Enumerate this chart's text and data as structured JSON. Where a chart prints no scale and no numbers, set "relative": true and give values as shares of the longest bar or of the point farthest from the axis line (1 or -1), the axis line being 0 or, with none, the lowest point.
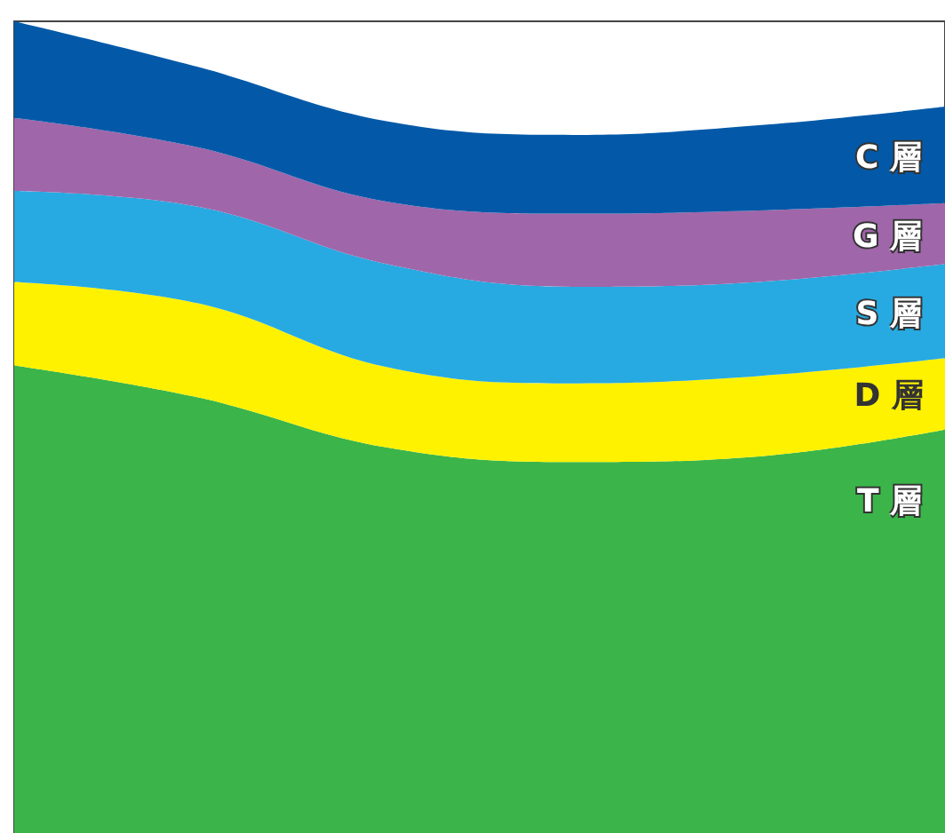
{
  "chart_data": {
    "type": "area",
    "relative": true,
    "stacked": true,
    "legend": false,
    "categories": [
      null,
      null,
      null,
      null,
      null,
      null
    ],
    "series": [
      {
        "name": "T 層",
        "color": "#3bb54a",
        "values": [
          0.576,
          0.536,
          0.475,
          0.457,
          0.464,
          0.497
        ]
      },
      {
        "name": "D 層",
        "color": "#fff200",
        "values": [
          0.103,
          0.116,
          0.099,
          0.097,
          0.099,
          0.088
        ]
      },
      {
        "name": "S 層",
        "color": "#27aae1",
        "values": [
          0.112,
          0.119,
          0.127,
          0.119,
          0.116,
          0.116
        ]
      },
      {
        "name": "G 層",
        "color": "#a066aa",
        "values": [
          0.09,
          0.073,
          0.077,
          0.09,
          0.088,
          0.075
        ]
      },
      {
        "name": "C 層",
        "color": "#0359a8",
        "values": [
          0.119,
          0.099,
          0.099,
          0.097,
          0.105,
          0.119
        ]
      }
    ]
  }
}
